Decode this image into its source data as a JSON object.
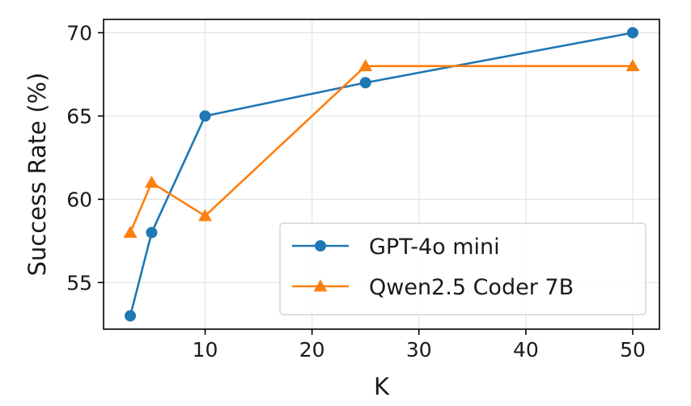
{
  "chart_data": {
    "type": "line",
    "title": "",
    "xlabel": "K",
    "ylabel": "Success Rate (%)",
    "xlim": [
      0.5,
      52.5
    ],
    "ylim": [
      52.2,
      70.8
    ],
    "xticks": [
      10,
      20,
      30,
      40,
      50
    ],
    "yticks": [
      55,
      60,
      65,
      70
    ],
    "xtick_labels": [
      "10",
      "20",
      "30",
      "40",
      "50"
    ],
    "ytick_labels": [
      "55",
      "60",
      "65",
      "70"
    ],
    "grid": true,
    "legend_position": "lower-right",
    "series": [
      {
        "name": "GPT-4o mini",
        "color": "#1f77b4",
        "marker": "circle",
        "x": [
          3,
          5,
          10,
          25,
          50
        ],
        "y": [
          53,
          58,
          65,
          67,
          70
        ]
      },
      {
        "name": "Qwen2.5 Coder 7B",
        "color": "#ff7f0e",
        "marker": "triangle",
        "x": [
          3,
          5,
          10,
          25,
          50
        ],
        "y": [
          58,
          61,
          59,
          68,
          68
        ]
      }
    ]
  }
}
